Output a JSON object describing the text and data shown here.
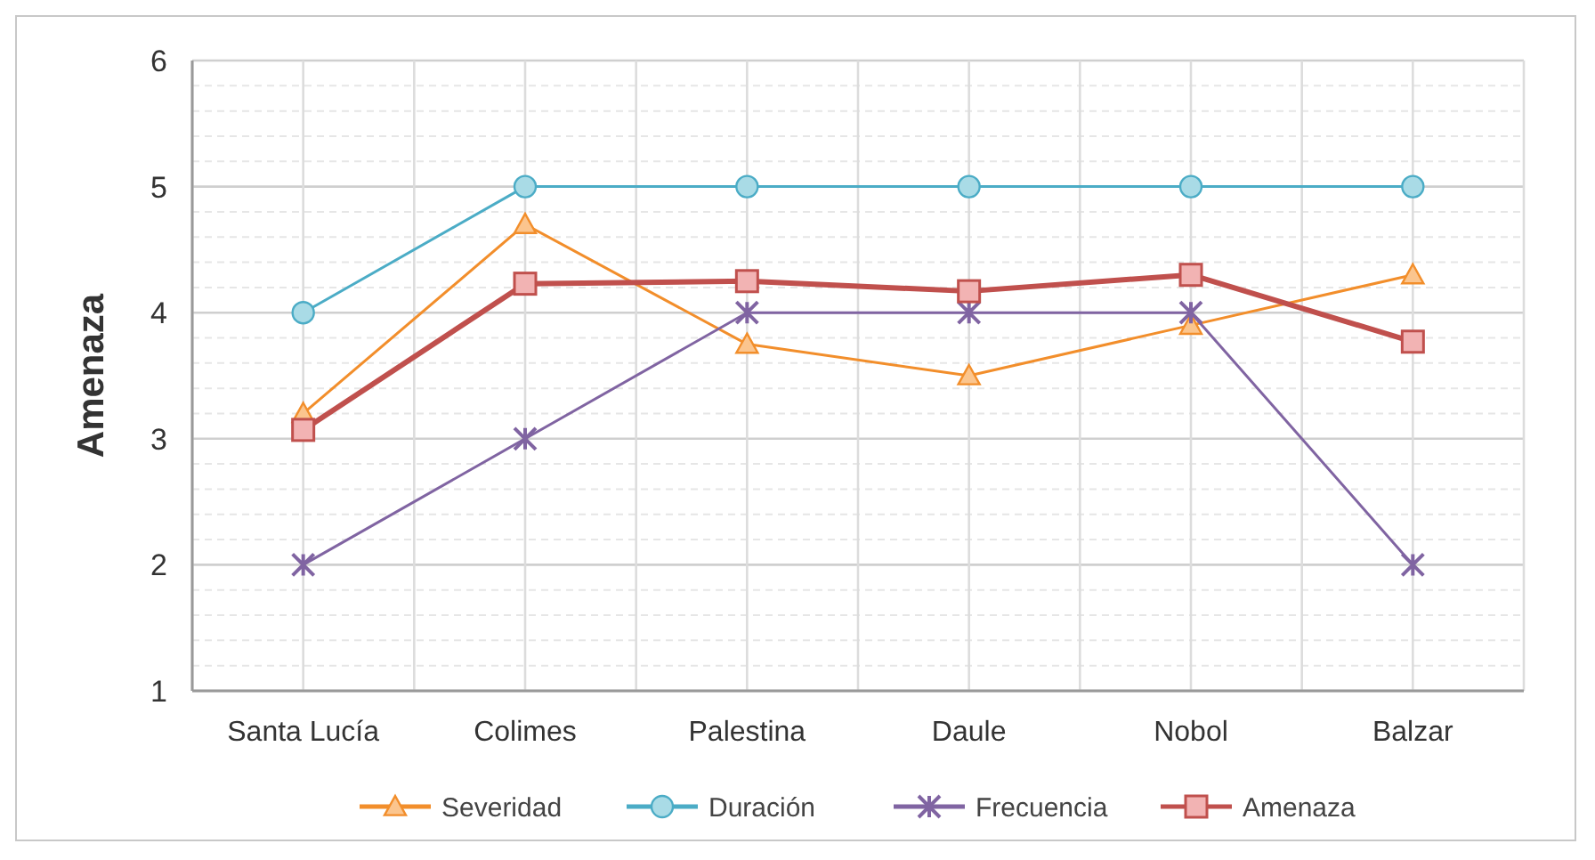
{
  "chart_data": {
    "type": "line",
    "ylabel": "Amenaza",
    "categories": [
      "Santa Lucía",
      "Colimes",
      "Palestina",
      "Daule",
      "Nobol",
      "Balzar"
    ],
    "ylim": [
      1,
      6
    ],
    "yticks": [
      1,
      2,
      3,
      4,
      5,
      6
    ],
    "grid": true,
    "legend": "bottom",
    "series": [
      {
        "name": "Severidad",
        "color": "#f28e2b",
        "marker": "triangle",
        "values": [
          3.2,
          4.7,
          3.75,
          3.5,
          3.9,
          4.3
        ]
      },
      {
        "name": "Duración",
        "color": "#4bacc6",
        "marker": "circle",
        "values": [
          4,
          5,
          5,
          5,
          5,
          5
        ]
      },
      {
        "name": "Frecuencia",
        "color": "#8064a2",
        "marker": "cross",
        "values": [
          2,
          3,
          4,
          4,
          4,
          2
        ]
      },
      {
        "name": "Amenaza",
        "color": "#c0504d",
        "marker": "square",
        "values": [
          3.07,
          4.23,
          4.25,
          4.17,
          4.3,
          3.77
        ]
      }
    ]
  }
}
